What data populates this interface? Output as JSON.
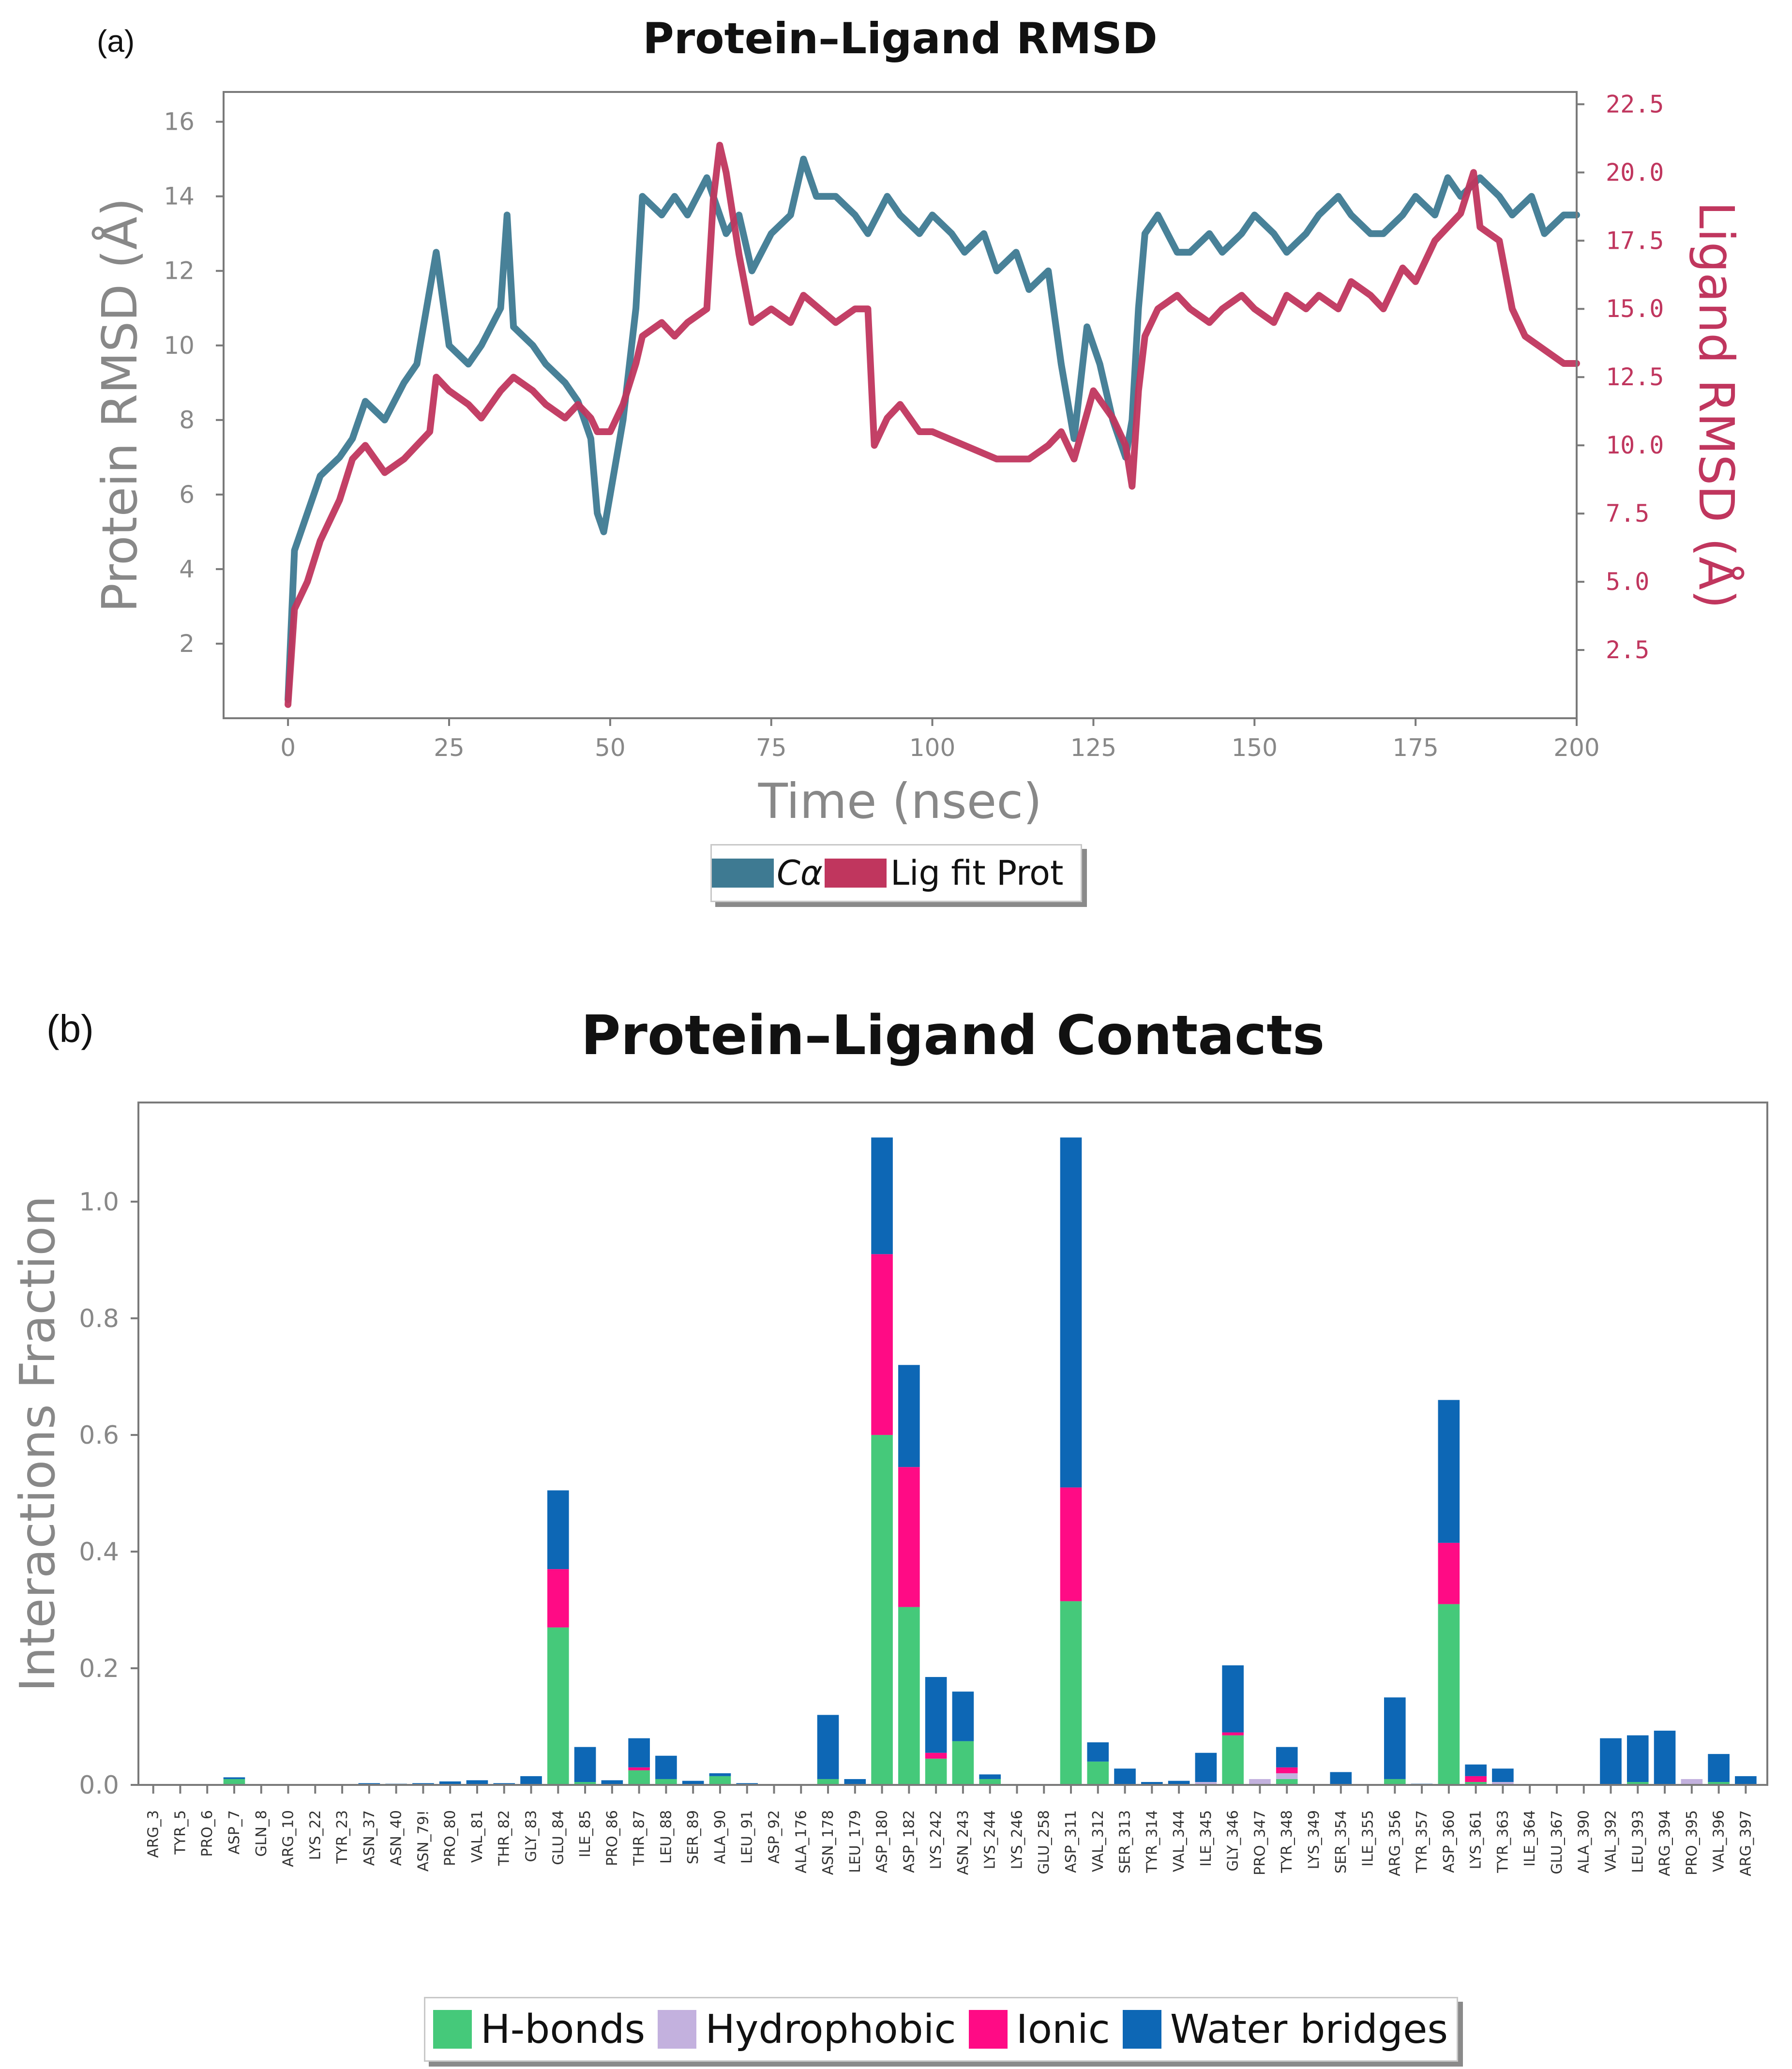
{
  "panel_a_label": "(a)",
  "panel_b_label": "(b)",
  "chart_data": [
    {
      "type": "line",
      "title": "Protein–Ligand RMSD",
      "xlabel": "Time (nsec)",
      "ylabel": "Protein RMSD (Å)",
      "ylabel_right": "Ligand RMSD (Å)",
      "xlim": [
        -10,
        200
      ],
      "ylim": [
        0,
        16.8
      ],
      "ylim_right": [
        0,
        22.95
      ],
      "xticks": [
        "0",
        "25",
        "50",
        "75",
        "100",
        "125",
        "150",
        "175",
        "200"
      ],
      "yticks": [
        "2",
        "4",
        "6",
        "8",
        "10",
        "12",
        "14",
        "16"
      ],
      "yticks_right": [
        "2.5",
        "5.0",
        "7.5",
        "10.0",
        "12.5",
        "15.0",
        "17.5",
        "20.0",
        "22.5"
      ],
      "colors": {
        "c_alpha": "#3e7a92",
        "ligand": "#c0365e",
        "right_axis": "#c0365e",
        "axis_text": "#888888"
      },
      "series": [
        {
          "name": "Cα",
          "axis": "left",
          "x": [
            0,
            1,
            3,
            5,
            8,
            10,
            12,
            15,
            18,
            20,
            22,
            23,
            25,
            28,
            30,
            33,
            34,
            35,
            38,
            40,
            43,
            45,
            47,
            48,
            49,
            50,
            52,
            54,
            55,
            58,
            60,
            62,
            65,
            68,
            70,
            72,
            75,
            78,
            80,
            82,
            85,
            88,
            90,
            93,
            95,
            98,
            100,
            103,
            105,
            108,
            110,
            113,
            115,
            118,
            120,
            122,
            124,
            126,
            128,
            130,
            131,
            132,
            133,
            135,
            138,
            140,
            143,
            145,
            148,
            150,
            153,
            155,
            158,
            160,
            163,
            165,
            168,
            170,
            173,
            175,
            178,
            180,
            182,
            185,
            188,
            190,
            193,
            195,
            198,
            200
          ],
          "values": [
            0.5,
            4.5,
            5.5,
            6.5,
            7.0,
            7.5,
            8.5,
            8.0,
            9.0,
            9.5,
            11.5,
            12.5,
            10.0,
            9.5,
            10.0,
            11.0,
            13.5,
            10.5,
            10.0,
            9.5,
            9.0,
            8.5,
            7.5,
            5.5,
            5.0,
            6.0,
            8.0,
            11.0,
            14.0,
            13.5,
            14.0,
            13.5,
            14.5,
            13.0,
            13.5,
            12.0,
            13.0,
            13.5,
            15.0,
            14.0,
            14.0,
            13.5,
            13.0,
            14.0,
            13.5,
            13.0,
            13.5,
            13.0,
            12.5,
            13.0,
            12.0,
            12.5,
            11.5,
            12.0,
            9.5,
            7.5,
            10.5,
            9.5,
            8.0,
            7.0,
            8.0,
            11.0,
            13.0,
            13.5,
            12.5,
            12.5,
            13.0,
            12.5,
            13.0,
            13.5,
            13.0,
            12.5,
            13.0,
            13.5,
            14.0,
            13.5,
            13.0,
            13.0,
            13.5,
            14.0,
            13.5,
            14.5,
            14.0,
            14.5,
            14.0,
            13.5,
            14.0,
            13.0,
            13.5,
            13.5
          ]
        },
        {
          "name": "Lig fit Prot",
          "axis": "right",
          "x": [
            0,
            1,
            3,
            5,
            8,
            10,
            12,
            15,
            18,
            20,
            22,
            23,
            25,
            28,
            30,
            33,
            35,
            38,
            40,
            43,
            45,
            47,
            48,
            50,
            52,
            54,
            55,
            58,
            60,
            62,
            65,
            66,
            67,
            68,
            70,
            72,
            75,
            78,
            80,
            85,
            88,
            90,
            91,
            93,
            95,
            98,
            100,
            105,
            110,
            115,
            118,
            120,
            122,
            125,
            128,
            130,
            131,
            132,
            133,
            135,
            138,
            140,
            143,
            145,
            148,
            150,
            153,
            155,
            158,
            160,
            163,
            165,
            168,
            170,
            173,
            175,
            178,
            180,
            182,
            184,
            185,
            188,
            190,
            192,
            195,
            198,
            200
          ],
          "values": [
            0.5,
            4.0,
            5.0,
            6.5,
            8.0,
            9.5,
            10.0,
            9.0,
            9.5,
            10.0,
            10.5,
            12.5,
            12.0,
            11.5,
            11.0,
            12.0,
            12.5,
            12.0,
            11.5,
            11.0,
            11.5,
            11.0,
            10.5,
            10.5,
            11.5,
            13.0,
            14.0,
            14.5,
            14.0,
            14.5,
            15.0,
            19.0,
            21.0,
            20.0,
            17.0,
            14.5,
            15.0,
            14.5,
            15.5,
            14.5,
            15.0,
            15.0,
            10.0,
            11.0,
            11.5,
            10.5,
            10.5,
            10.0,
            9.5,
            9.5,
            10.0,
            10.5,
            9.5,
            12.0,
            11.0,
            10.0,
            8.5,
            12.0,
            14.0,
            15.0,
            15.5,
            15.0,
            14.5,
            15.0,
            15.5,
            15.0,
            14.5,
            15.5,
            15.0,
            15.5,
            15.0,
            16.0,
            15.5,
            15.0,
            16.5,
            16.0,
            17.5,
            18.0,
            18.5,
            20.0,
            18.0,
            17.5,
            15.0,
            14.0,
            13.5,
            13.0,
            13.0
          ]
        }
      ],
      "legend": {
        "position": "bottom-center",
        "entries": [
          "Cα",
          "Lig fit Prot"
        ]
      }
    },
    {
      "type": "bar",
      "stacked": true,
      "title": "Protein–Ligand Contacts",
      "xlabel": "",
      "ylabel": "Interactions Fraction",
      "ylim": [
        0,
        1.17
      ],
      "yticks": [
        "0.0",
        "0.2",
        "0.4",
        "0.6",
        "0.8",
        "1.0"
      ],
      "categories": [
        "ARG_3",
        "TYR_5",
        "PRO_6",
        "ASP_7",
        "GLN_8",
        "ARG_10",
        "LYS_22",
        "TYR_23",
        "ASN_37",
        "ASN_40",
        "ASN_79!",
        "PRO_80",
        "VAL_81",
        "THR_82",
        "GLY_83",
        "GLU_84",
        "ILE_85",
        "PRO_86",
        "THR_87",
        "LEU_88",
        "SER_89",
        "ALA_90",
        "LEU_91",
        "ASP_92",
        "ALA_176",
        "ASN_178",
        "LEU_179",
        "ASP_180",
        "ASP_182",
        "LYS_242",
        "ASN_243",
        "LYS_244",
        "LYS_246",
        "GLU_258",
        "ASP_311",
        "VAL_312",
        "SER_313",
        "TYR_314",
        "VAL_344",
        "ILE_345",
        "GLY_346",
        "PRO_347",
        "TYR_348",
        "LYS_349",
        "SER_354",
        "ILE_355",
        "ARG_356",
        "TYR_357",
        "ASP_360",
        "LYS_361",
        "TYR_363",
        "ILE_364",
        "GLU_367",
        "ALA_390",
        "VAL_392",
        "LEU_393",
        "ARG_394",
        "PRO_395",
        "VAL_396",
        "ARG_397"
      ],
      "series": [
        {
          "name": "H-bonds",
          "color": "#45c97a",
          "values": [
            0,
            0,
            0,
            0.01,
            0,
            0,
            0,
            0,
            0,
            0,
            0,
            0,
            0,
            0,
            0,
            0.27,
            0.005,
            0,
            0.025,
            0.01,
            0,
            0.015,
            0,
            0,
            0,
            0.01,
            0,
            0.6,
            0.305,
            0.045,
            0.075,
            0.01,
            0,
            0,
            0.315,
            0.04,
            0,
            0,
            0,
            0,
            0.085,
            0,
            0.01,
            0,
            0,
            0,
            0.01,
            0,
            0.31,
            0.005,
            0,
            0,
            0,
            0,
            0,
            0.005,
            0,
            0,
            0.005,
            0
          ]
        },
        {
          "name": "Hydrophobic",
          "color": "#c3b1de",
          "values": [
            0,
            0,
            0,
            0,
            0,
            0,
            0,
            0,
            0,
            0,
            0,
            0,
            0,
            0,
            0,
            0,
            0,
            0,
            0,
            0,
            0,
            0,
            0,
            0,
            0,
            0,
            0,
            0,
            0,
            0,
            0,
            0,
            0,
            0,
            0,
            0,
            0,
            0,
            0,
            0.005,
            0,
            0.01,
            0.01,
            0,
            0,
            0,
            0,
            0,
            0,
            0,
            0.005,
            0,
            0,
            0,
            0,
            0,
            0,
            0.01,
            0,
            0
          ]
        },
        {
          "name": "Ionic",
          "color": "#ff0b85",
          "values": [
            0,
            0,
            0,
            0,
            0,
            0,
            0,
            0,
            0,
            0,
            0,
            0,
            0,
            0,
            0,
            0.1,
            0,
            0,
            0.005,
            0,
            0,
            0,
            0,
            0,
            0,
            0,
            0,
            0.31,
            0.24,
            0.01,
            0,
            0,
            0,
            0,
            0.195,
            0,
            0,
            0,
            0,
            0,
            0.005,
            0,
            0.01,
            0,
            0,
            0,
            0,
            0,
            0.105,
            0.01,
            0,
            0,
            0,
            0,
            0,
            0,
            0,
            0,
            0,
            0
          ]
        },
        {
          "name": "Water bridges",
          "color": "#0d67b5",
          "values": [
            0,
            0,
            0,
            0.003,
            0,
            0,
            0,
            0,
            0.003,
            0.002,
            0.003,
            0.006,
            0.008,
            0.003,
            0.015,
            0.135,
            0.06,
            0.008,
            0.05,
            0.04,
            0.007,
            0.005,
            0.003,
            0,
            0,
            0.11,
            0.01,
            0.2,
            0.175,
            0.13,
            0.085,
            0.008,
            0,
            0,
            0.6,
            0.033,
            0.028,
            0.005,
            0.007,
            0.05,
            0.115,
            0,
            0.035,
            0,
            0.022,
            0,
            0.14,
            0.002,
            0.245,
            0.02,
            0.023,
            0,
            0,
            0,
            0.08,
            0.08,
            0.093,
            0,
            0.048,
            0.015
          ]
        }
      ],
      "legend": {
        "position": "bottom-center",
        "entries": [
          "H-bonds",
          "Hydrophobic",
          "Ionic",
          "Water bridges"
        ]
      }
    }
  ]
}
